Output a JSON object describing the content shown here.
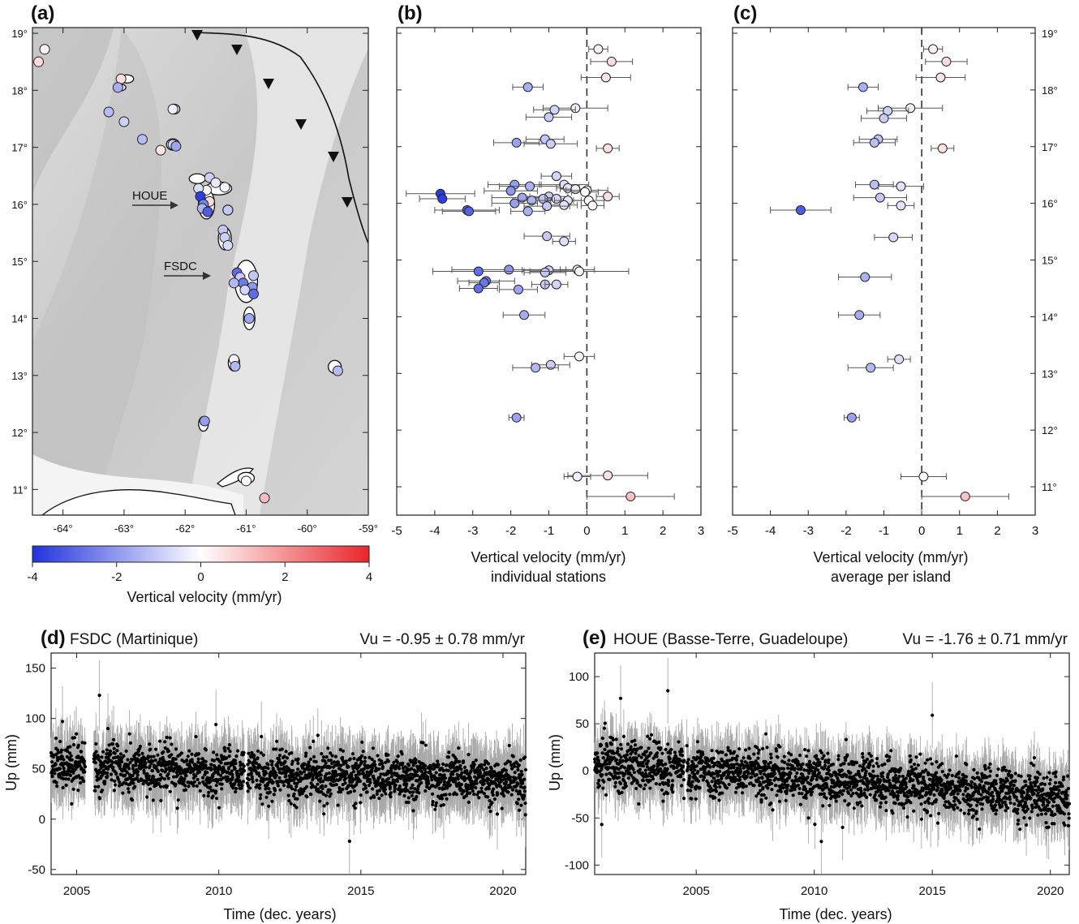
{
  "colors": {
    "negative": "#2233dd",
    "neutral": "#ffffff",
    "positive": "#e8262a",
    "series": "#000000",
    "errorbar": "#a9a9a9"
  },
  "chart_data": [
    {
      "id": "a",
      "panel_label": "(a)",
      "type": "map",
      "x_ticks": [
        "-64°",
        "-63°",
        "-62°",
        "-61°",
        "-60°",
        "-59°"
      ],
      "y_ticks": [
        "19°",
        "18°",
        "17°",
        "16°",
        "15°",
        "14°",
        "13°",
        "12°",
        "11°"
      ],
      "annotations": [
        "HOUE",
        "FSDC"
      ],
      "colorbar": {
        "label": "Vertical velocity (mm/yr)",
        "ticks": [
          "-4",
          "-2",
          "0",
          "2",
          "4"
        ],
        "range": [
          -4,
          4
        ]
      },
      "stations": [
        {
          "lon": -64.3,
          "lat": 18.72,
          "v": 0.3
        },
        {
          "lon": -64.4,
          "lat": 18.5,
          "v": 0.7
        },
        {
          "lon": -63.05,
          "lat": 18.2,
          "v": 0.6
        },
        {
          "lon": -63.1,
          "lat": 18.05,
          "v": -1.6
        },
        {
          "lon": -63.25,
          "lat": 17.62,
          "v": -1.3
        },
        {
          "lon": -63.0,
          "lat": 17.45,
          "v": -0.9
        },
        {
          "lon": -62.7,
          "lat": 17.14,
          "v": -1.3
        },
        {
          "lon": -62.4,
          "lat": 16.95,
          "v": 0.5
        },
        {
          "lon": -62.2,
          "lat": 17.05,
          "v": -0.8
        },
        {
          "lon": -62.15,
          "lat": 17.02,
          "v": -1.8
        },
        {
          "lon": -62.2,
          "lat": 17.67,
          "v": -0.3
        },
        {
          "lon": -61.6,
          "lat": 16.47,
          "v": -0.9
        },
        {
          "lon": -61.5,
          "lat": 16.38,
          "v": -0.4
        },
        {
          "lon": -61.35,
          "lat": 16.3,
          "v": -0.2
        },
        {
          "lon": -61.65,
          "lat": 16.25,
          "v": 0.1
        },
        {
          "lon": -61.78,
          "lat": 16.28,
          "v": -0.6
        },
        {
          "lon": -61.75,
          "lat": 16.14,
          "v": -3.8
        },
        {
          "lon": -61.6,
          "lat": 16.05,
          "v": 0.6
        },
        {
          "lon": -61.7,
          "lat": 16.0,
          "v": -2.4
        },
        {
          "lon": -61.72,
          "lat": 15.93,
          "v": -1.5
        },
        {
          "lon": -61.63,
          "lat": 15.87,
          "v": -3.2
        },
        {
          "lon": -61.3,
          "lat": 15.9,
          "v": -1.1
        },
        {
          "lon": -61.38,
          "lat": 15.55,
          "v": -1.1
        },
        {
          "lon": -61.35,
          "lat": 15.42,
          "v": -0.9
        },
        {
          "lon": -61.3,
          "lat": 15.28,
          "v": -0.7
        },
        {
          "lon": -61.15,
          "lat": 14.8,
          "v": -2.9
        },
        {
          "lon": -61.1,
          "lat": 14.72,
          "v": -1.0
        },
        {
          "lon": -60.88,
          "lat": 14.75,
          "v": -1.1
        },
        {
          "lon": -61.05,
          "lat": 14.62,
          "v": -2.6
        },
        {
          "lon": -60.9,
          "lat": 14.55,
          "v": -2.0
        },
        {
          "lon": -61.02,
          "lat": 14.5,
          "v": -0.8
        },
        {
          "lon": -60.88,
          "lat": 14.43,
          "v": -2.9
        },
        {
          "lon": -61.2,
          "lat": 14.62,
          "v": -1.4
        },
        {
          "lon": -60.95,
          "lat": 14.0,
          "v": -1.7
        },
        {
          "lon": -61.2,
          "lat": 13.28,
          "v": -0.2
        },
        {
          "lon": -61.18,
          "lat": 13.16,
          "v": -1.4
        },
        {
          "lon": -59.5,
          "lat": 13.08,
          "v": -1.3
        },
        {
          "lon": -61.68,
          "lat": 12.2,
          "v": -1.9
        },
        {
          "lon": -61.0,
          "lat": 11.15,
          "v": 0.0
        },
        {
          "lon": -60.7,
          "lat": 10.85,
          "v": 1.2
        }
      ]
    },
    {
      "id": "b",
      "panel_label": "(b)",
      "type": "scatter",
      "xlabel": "Vertical velocity (mm/yr)",
      "xlabel2": "individual stations",
      "xlim": [
        -5,
        3
      ],
      "ylim": [
        10.5,
        19.1
      ],
      "x_ticks": [
        "-5",
        "-4",
        "-3",
        "-2",
        "-1",
        "0",
        "1",
        "2",
        "3"
      ],
      "points": [
        {
          "v": 0.3,
          "e": 0.25,
          "lat": 18.72
        },
        {
          "v": 0.65,
          "e": 0.55,
          "lat": 18.5
        },
        {
          "v": 0.5,
          "e": 0.65,
          "lat": 18.22
        },
        {
          "v": -1.55,
          "e": 0.4,
          "lat": 18.05
        },
        {
          "v": -0.3,
          "e": 0.85,
          "lat": 17.68
        },
        {
          "v": -0.85,
          "e": 0.55,
          "lat": 17.65
        },
        {
          "v": -1.0,
          "e": 0.6,
          "lat": 17.52
        },
        {
          "v": -1.1,
          "e": 0.5,
          "lat": 17.13
        },
        {
          "v": -1.85,
          "e": 0.6,
          "lat": 17.07
        },
        {
          "v": -0.95,
          "e": 0.7,
          "lat": 17.05
        },
        {
          "v": 0.55,
          "e": 0.3,
          "lat": 16.97
        },
        {
          "v": -0.8,
          "e": 0.4,
          "lat": 16.48
        },
        {
          "v": -1.9,
          "e": 0.7,
          "lat": 16.33
        },
        {
          "v": -0.6,
          "e": 0.65,
          "lat": 16.33
        },
        {
          "v": -1.5,
          "e": 0.8,
          "lat": 16.3
        },
        {
          "v": -0.5,
          "e": 0.3,
          "lat": 16.27
        },
        {
          "v": -0.3,
          "e": 0.4,
          "lat": 16.25
        },
        {
          "v": -2.0,
          "e": 0.7,
          "lat": 16.22
        },
        {
          "v": 0.0,
          "e": 0.55,
          "lat": 16.23
        },
        {
          "v": -0.05,
          "e": 0.35,
          "lat": 16.2
        },
        {
          "v": -3.85,
          "e": 0.9,
          "lat": 16.17
        },
        {
          "v": -1.0,
          "e": 0.5,
          "lat": 16.12
        },
        {
          "v": 0.55,
          "e": 0.3,
          "lat": 16.12
        },
        {
          "v": -1.7,
          "e": 0.8,
          "lat": 16.1
        },
        {
          "v": -3.8,
          "e": 0.6,
          "lat": 16.08
        },
        {
          "v": -1.15,
          "e": 0.4,
          "lat": 16.08
        },
        {
          "v": -0.8,
          "e": 0.3,
          "lat": 16.08
        },
        {
          "v": -0.5,
          "e": 0.35,
          "lat": 16.05
        },
        {
          "v": -1.45,
          "e": 0.5,
          "lat": 16.05
        },
        {
          "v": 0.05,
          "e": 0.4,
          "lat": 16.05
        },
        {
          "v": -1.9,
          "e": 0.6,
          "lat": 16.0
        },
        {
          "v": -0.6,
          "e": 0.35,
          "lat": 15.97
        },
        {
          "v": 0.15,
          "e": 0.3,
          "lat": 15.96
        },
        {
          "v": -1.05,
          "e": 0.6,
          "lat": 15.95
        },
        {
          "v": -3.15,
          "e": 0.85,
          "lat": 15.88
        },
        {
          "v": -3.1,
          "e": 0.7,
          "lat": 15.86
        },
        {
          "v": -1.55,
          "e": 0.45,
          "lat": 15.86
        },
        {
          "v": -1.05,
          "e": 0.6,
          "lat": 15.42
        },
        {
          "v": -0.6,
          "e": 0.3,
          "lat": 15.33
        },
        {
          "v": -2.05,
          "e": 1.5,
          "lat": 14.83
        },
        {
          "v": -2.85,
          "e": 1.2,
          "lat": 14.8
        },
        {
          "v": -1.0,
          "e": 0.7,
          "lat": 14.82
        },
        {
          "v": -1.1,
          "e": 0.55,
          "lat": 14.78
        },
        {
          "v": -0.25,
          "e": 0.45,
          "lat": 14.83
        },
        {
          "v": -0.2,
          "e": 1.3,
          "lat": 14.8
        },
        {
          "v": -2.65,
          "e": 0.75,
          "lat": 14.63
        },
        {
          "v": -2.7,
          "e": 0.4,
          "lat": 14.6
        },
        {
          "v": -1.1,
          "e": 0.35,
          "lat": 14.57
        },
        {
          "v": -0.8,
          "e": 0.3,
          "lat": 14.57
        },
        {
          "v": -2.85,
          "e": 0.5,
          "lat": 14.5
        },
        {
          "v": -1.8,
          "e": 0.5,
          "lat": 14.48
        },
        {
          "v": -1.65,
          "e": 0.55,
          "lat": 14.03
        },
        {
          "v": -0.2,
          "e": 0.4,
          "lat": 13.3
        },
        {
          "v": -0.95,
          "e": 0.5,
          "lat": 13.15
        },
        {
          "v": -1.35,
          "e": 0.6,
          "lat": 13.1
        },
        {
          "v": -1.85,
          "e": 0.2,
          "lat": 12.22
        },
        {
          "v": 0.55,
          "e": 1.05,
          "lat": 11.2
        },
        {
          "v": -0.25,
          "e": 0.35,
          "lat": 11.18
        },
        {
          "v": 1.15,
          "e": 1.15,
          "lat": 10.83
        }
      ]
    },
    {
      "id": "c",
      "panel_label": "(c)",
      "type": "scatter",
      "xlabel": "Vertical velocity (mm/yr)",
      "xlabel2": "average per island",
      "xlim": [
        -5,
        3
      ],
      "ylim": [
        10.5,
        19.1
      ],
      "x_ticks": [
        "-5",
        "-4",
        "-3",
        "-2",
        "-1",
        "0",
        "1",
        "2",
        "3"
      ],
      "y_ticks": [
        "19°",
        "18°",
        "17°",
        "16°",
        "15°",
        "14°",
        "13°",
        "12°",
        "11°"
      ],
      "points": [
        {
          "v": 0.3,
          "e": 0.25,
          "lat": 18.72
        },
        {
          "v": 0.65,
          "e": 0.55,
          "lat": 18.5
        },
        {
          "v": 0.5,
          "e": 0.65,
          "lat": 18.22
        },
        {
          "v": -1.55,
          "e": 0.4,
          "lat": 18.05
        },
        {
          "v": -0.3,
          "e": 0.85,
          "lat": 17.68
        },
        {
          "v": -0.9,
          "e": 0.55,
          "lat": 17.63
        },
        {
          "v": -1.0,
          "e": 0.6,
          "lat": 17.5
        },
        {
          "v": -1.15,
          "e": 0.5,
          "lat": 17.13
        },
        {
          "v": -1.25,
          "e": 0.55,
          "lat": 17.07
        },
        {
          "v": 0.55,
          "e": 0.3,
          "lat": 16.97
        },
        {
          "v": -1.25,
          "e": 0.5,
          "lat": 16.33
        },
        {
          "v": -0.55,
          "e": 0.6,
          "lat": 16.3
        },
        {
          "v": -1.1,
          "e": 0.7,
          "lat": 16.1
        },
        {
          "v": -0.55,
          "e": 0.35,
          "lat": 15.96
        },
        {
          "v": -3.2,
          "e": 0.8,
          "lat": 15.88
        },
        {
          "v": -0.75,
          "e": 0.5,
          "lat": 15.4
        },
        {
          "v": -1.5,
          "e": 0.7,
          "lat": 14.7
        },
        {
          "v": -1.65,
          "e": 0.55,
          "lat": 14.03
        },
        {
          "v": -0.6,
          "e": 0.3,
          "lat": 13.25
        },
        {
          "v": -1.35,
          "e": 0.6,
          "lat": 13.1
        },
        {
          "v": -1.85,
          "e": 0.2,
          "lat": 12.22
        },
        {
          "v": 0.05,
          "e": 0.6,
          "lat": 11.18
        },
        {
          "v": 1.15,
          "e": 1.15,
          "lat": 10.83
        }
      ]
    },
    {
      "id": "d",
      "panel_label": "(d)",
      "type": "scatter",
      "title": "FSDC (Martinique)",
      "rate": "Vu = -0.95 ± 0.78 mm/yr",
      "xlabel": "Time (dec. years)",
      "ylabel": "Up (mm)",
      "xlim": [
        2004.1,
        2020.8
      ],
      "ylim": [
        -55,
        165
      ],
      "x_ticks": [
        "2005",
        "2010",
        "2015",
        "2020"
      ],
      "y_ticks": [
        "-50",
        "0",
        "50",
        "100",
        "150"
      ],
      "series": {
        "start": 2004.1,
        "end": 2020.8,
        "level_start": 53,
        "level_end": 38,
        "scatter": 15,
        "gaps": [
          [
            2005.3,
            2005.6
          ],
          [
            2010.9,
            2011.0
          ]
        ]
      },
      "outliers": [
        [
          2005.8,
          123
        ],
        [
          2004.5,
          97
        ],
        [
          2006.1,
          90
        ],
        [
          2009.9,
          94
        ],
        [
          2011.5,
          82
        ],
        [
          2014.6,
          -22
        ],
        [
          2019.8,
          5
        ]
      ]
    },
    {
      "id": "e",
      "panel_label": "(e)",
      "type": "scatter",
      "title": "HOUE (Basse-Terre, Guadeloupe)",
      "rate": "Vu = -1.76 ± 0.71 mm/yr",
      "xlabel": "Time (dec. years)",
      "ylabel": "Up (mm)",
      "xlim": [
        2000.7,
        2020.8
      ],
      "ylim": [
        -110,
        125
      ],
      "x_ticks": [
        "2005",
        "2010",
        "2015",
        "2020"
      ],
      "y_ticks": [
        "-100",
        "-50",
        "0",
        "50",
        "100"
      ],
      "series": {
        "start": 2000.7,
        "end": 2020.8,
        "level_start": 8,
        "level_end": -27,
        "scatter": 17,
        "gaps": [
          [
            2004.5,
            2004.6
          ]
        ]
      },
      "outliers": [
        [
          2001.8,
          77
        ],
        [
          2003.8,
          85
        ],
        [
          2010.3,
          -75
        ],
        [
          2015.0,
          59
        ],
        [
          2001.0,
          -57
        ],
        [
          2011.2,
          -60
        ]
      ]
    }
  ]
}
